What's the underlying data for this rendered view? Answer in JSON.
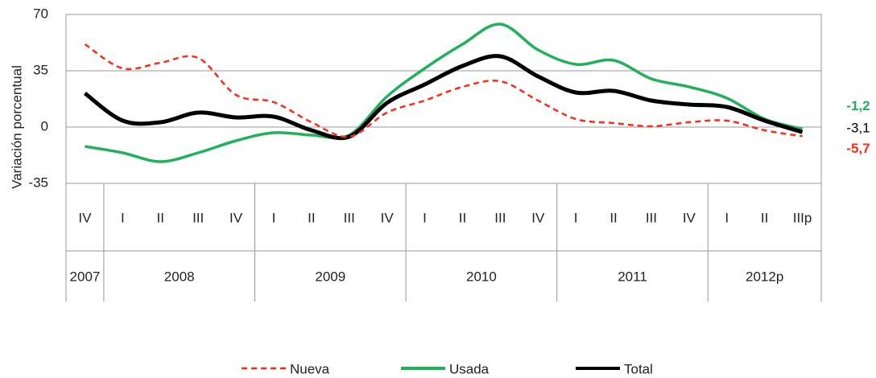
{
  "chart_data": {
    "type": "line",
    "y_label": "Variación porcentual",
    "categories": [
      "IV",
      "I",
      "II",
      "III",
      "IV",
      "I",
      "II",
      "III",
      "IV",
      "I",
      "II",
      "III",
      "IV",
      "I",
      "II",
      "III",
      "IV",
      "I",
      "II",
      "IIIp"
    ],
    "year_labels": [
      "2007",
      "2008",
      null,
      null,
      null,
      "2009",
      null,
      null,
      null,
      "2010",
      null,
      null,
      null,
      "2011",
      null,
      null,
      null,
      "2012p",
      null,
      null
    ],
    "series": [
      {
        "name": "Nueva",
        "color": "#ff2a1a",
        "dashed": true,
        "values": [
          51.5,
          36.5,
          40,
          43,
          20,
          15.5,
          3,
          -6,
          9,
          16.5,
          25,
          28.5,
          16.5,
          5,
          2.5,
          0.5,
          3,
          4,
          -2,
          -5.7
        ],
        "value_labels": [
          null,
          null,
          null,
          null,
          null,
          null,
          null,
          null,
          null,
          null,
          null,
          null,
          null,
          null,
          null,
          null,
          null,
          null,
          null,
          "-5,7"
        ]
      },
      {
        "name": "Usada",
        "color": "#1fb25a",
        "dashed": false,
        "values": [
          -12,
          -16,
          -21.5,
          -16,
          -8.5,
          -3.5,
          -5,
          -5,
          19,
          36.5,
          51.5,
          64,
          48,
          39,
          41.5,
          30,
          25,
          18,
          5,
          -1.2
        ],
        "value_labels": [
          null,
          null,
          null,
          null,
          null,
          null,
          null,
          null,
          null,
          null,
          null,
          null,
          null,
          null,
          null,
          null,
          null,
          null,
          null,
          "-1,2"
        ]
      },
      {
        "name": "Total",
        "color": "#000000",
        "dashed": false,
        "values": [
          21,
          4,
          3,
          9,
          6,
          6.5,
          -2,
          -6,
          15,
          26.5,
          38,
          44,
          31.5,
          21.5,
          22.5,
          16.5,
          14,
          12.5,
          4,
          -3.1
        ],
        "value_labels": [
          null,
          null,
          null,
          null,
          null,
          null,
          null,
          null,
          null,
          null,
          null,
          null,
          null,
          null,
          null,
          null,
          null,
          null,
          null,
          "-3,1"
        ]
      }
    ],
    "ylim": [
      -35,
      70
    ],
    "yticks": [
      70,
      35,
      0,
      -35
    ],
    "grid": true
  }
}
